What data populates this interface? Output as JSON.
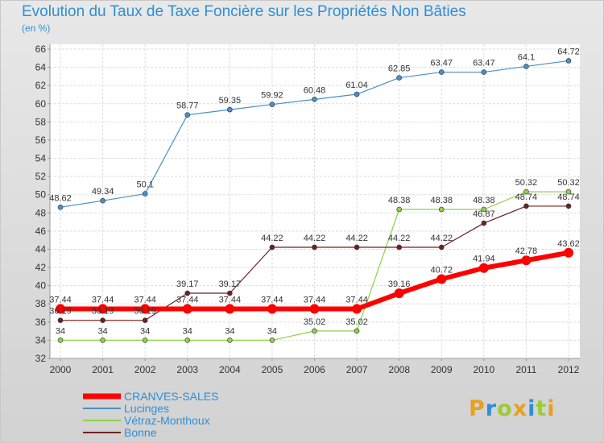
{
  "title": "Evolution du Taux de Taxe Foncière sur les Propriétés Non Bâties",
  "subtitle": "(en %)",
  "logo": {
    "letters": [
      "P",
      "r",
      "o",
      "x",
      "i",
      "t",
      "i"
    ],
    "colors": [
      "#e8a020",
      "#2e8fd8",
      "#9acd32",
      "#e8a020",
      "#2e8fd8",
      "#9acd32",
      "#e8a020"
    ]
  },
  "chart_data": {
    "type": "line",
    "title": "Evolution du Taux de Taxe Foncière sur les Propriétés Non Bâties",
    "ylabel": "(en %)",
    "xlabel": "",
    "x": [
      "2000",
      "2001",
      "2002",
      "2003",
      "2004",
      "2005",
      "2006",
      "2007",
      "2008",
      "2009",
      "2010",
      "2011",
      "2012"
    ],
    "ylim": [
      32,
      66
    ],
    "yticks": [
      32,
      34,
      36,
      38,
      40,
      42,
      44,
      46,
      48,
      50,
      52,
      54,
      56,
      58,
      60,
      62,
      64,
      66
    ],
    "grid": true,
    "legend_position": "bottom-left",
    "series": [
      {
        "name": "Lucinges",
        "color": "#4a90c8",
        "width": 1.2,
        "values": [
          48.62,
          49.34,
          50.1,
          58.77,
          59.35,
          59.92,
          60.48,
          61.04,
          62.85,
          63.47,
          63.47,
          64.1,
          64.72
        ],
        "labels": [
          "48.62",
          "49.34",
          "50.1",
          "58.77",
          "59.35",
          "59.92",
          "60.48",
          "61.04",
          "62.85",
          "63.47",
          "63.47",
          "64.1",
          "64.72"
        ]
      },
      {
        "name": "Vétraz-Monthoux",
        "color": "#8fd04a",
        "width": 1.2,
        "values": [
          34,
          34,
          34,
          34,
          34,
          34,
          35.02,
          35.02,
          48.38,
          48.38,
          48.38,
          50.32,
          50.32
        ],
        "labels": [
          "34",
          "34",
          "34",
          "34",
          "34",
          "34",
          "35.02",
          "35.02",
          "48.38",
          "48.38",
          "48.38",
          "50.32",
          "50.32"
        ]
      },
      {
        "name": "Bonne",
        "color": "#6b2222",
        "width": 1.2,
        "values": [
          36.19,
          36.19,
          36.19,
          39.17,
          39.17,
          44.22,
          44.22,
          44.22,
          44.22,
          44.22,
          46.87,
          48.74,
          48.74
        ],
        "labels": [
          "36.19",
          "36.19",
          "36.19",
          "39.17",
          "39.17",
          "44.22",
          "44.22",
          "44.22",
          "44.22",
          "44.22",
          "46.87",
          "48.74",
          "48.74"
        ]
      },
      {
        "name": "CRANVES-SALES",
        "color": "#ff0000",
        "width": 6,
        "values": [
          37.44,
          37.44,
          37.44,
          37.44,
          37.44,
          37.44,
          37.44,
          37.44,
          39.16,
          40.72,
          41.94,
          42.78,
          43.62
        ],
        "labels": [
          "37.44",
          "37.44",
          "37.44",
          "37.44",
          "37.44",
          "37.44",
          "37.44",
          "37.44",
          "39.16",
          "40.72",
          "41.94",
          "42.78",
          "43.62"
        ]
      }
    ],
    "legend_order": [
      "CRANVES-SALES",
      "Lucinges",
      "Vétraz-Monthoux",
      "Bonne"
    ]
  }
}
